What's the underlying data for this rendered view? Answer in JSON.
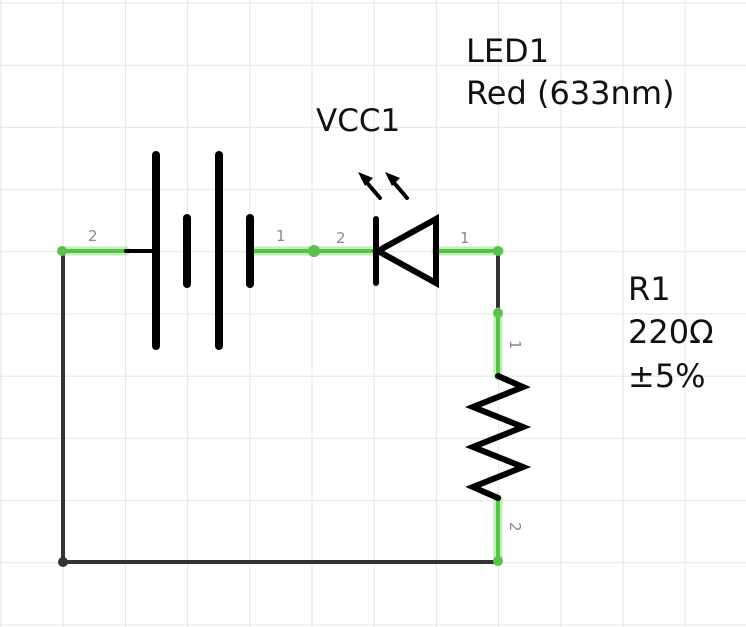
{
  "colors": {
    "background": "#ffffff",
    "grid": "#e6e6e6",
    "wire": "#333333",
    "connected_wire": "#58c24a",
    "connected_glow": "#b5ecab",
    "symbol": "#000000",
    "pin_label": "#8a8a8a"
  },
  "components": {
    "battery": {
      "ref": "VCC1",
      "pin_left": "2",
      "pin_right": "1"
    },
    "led": {
      "ref": "LED1",
      "value": "Red (633nm)",
      "pin_left": "2",
      "pin_right": "1"
    },
    "resistor": {
      "ref": "R1",
      "value": "220Ω",
      "tolerance": "±5%",
      "pin_top": "1",
      "pin_bottom": "2"
    }
  }
}
